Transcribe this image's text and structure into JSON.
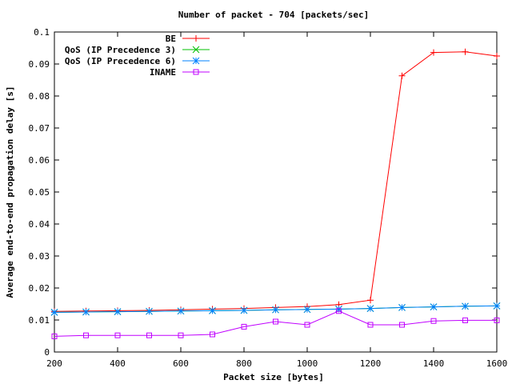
{
  "chart_data": {
    "type": "line",
    "title": "Number of packet - 704 [packets/sec]",
    "xlabel": "Packet size [bytes]",
    "ylabel": "Average end-to-end propagation delay [s]",
    "xlim": [
      200,
      1600
    ],
    "ylim": [
      0,
      0.1
    ],
    "xticks": [
      200,
      400,
      600,
      800,
      1000,
      1200,
      1400,
      1600
    ],
    "yticks": [
      0,
      0.01,
      0.02,
      0.03,
      0.04,
      0.05,
      0.06,
      0.07,
      0.08,
      0.09,
      0.1
    ],
    "ytick_labels": [
      "0",
      "0.01",
      "0.02",
      "0.03",
      "0.04",
      "0.05",
      "0.06",
      "0.07",
      "0.08",
      "0.09",
      "0.1"
    ],
    "grid": false,
    "legend_position": "top-left",
    "x": [
      200,
      300,
      400,
      500,
      600,
      700,
      800,
      900,
      1000,
      1100,
      1200,
      1300,
      1400,
      1500,
      1600
    ],
    "series": [
      {
        "name": "BE",
        "color": "#ff0000",
        "marker": "plus",
        "values": [
          0.0127,
          0.0128,
          0.0129,
          0.013,
          0.0132,
          0.0134,
          0.0136,
          0.0139,
          0.0142,
          0.0148,
          0.0162,
          0.0863,
          0.0936,
          0.0938,
          0.0925
        ]
      },
      {
        "name": "QoS (IP Precedence 3)",
        "color": "#00c000",
        "marker": "cross",
        "values": [
          0.0124,
          0.0125,
          0.0126,
          0.0127,
          0.0128,
          0.0129,
          0.013,
          0.0132,
          0.0133,
          0.0134,
          0.0136,
          0.0139,
          0.0141,
          0.0143,
          0.0144
        ]
      },
      {
        "name": "QoS (IP Precedence 6)",
        "color": "#0080ff",
        "marker": "star",
        "values": [
          0.0124,
          0.0125,
          0.0126,
          0.0127,
          0.0128,
          0.0129,
          0.013,
          0.0132,
          0.0133,
          0.0134,
          0.0136,
          0.0139,
          0.0141,
          0.0143,
          0.0144
        ]
      },
      {
        "name": "INAME",
        "color": "#c000ff",
        "marker": "square",
        "values": [
          0.0049,
          0.0052,
          0.0052,
          0.0052,
          0.0052,
          0.0055,
          0.0079,
          0.0095,
          0.0085,
          0.0128,
          0.0085,
          0.0085,
          0.0097,
          0.0099,
          0.0099
        ]
      }
    ]
  }
}
